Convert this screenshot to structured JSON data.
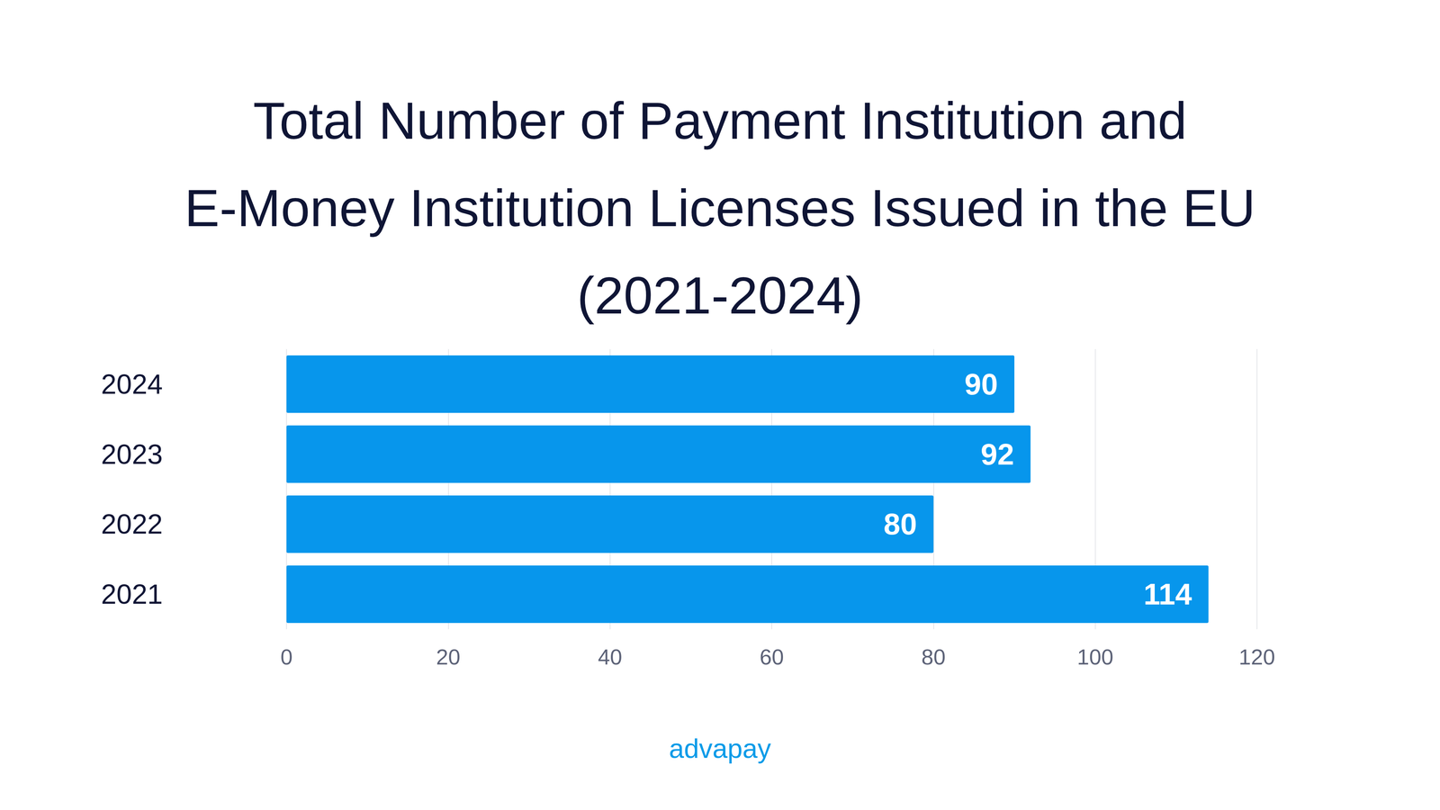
{
  "chart_data": {
    "type": "bar",
    "title": "Total Number of Payment Institution and\nE-Money Institution Licenses Issued in the EU\n(2021-2024)",
    "categories": [
      "2021",
      "2022",
      "2023",
      "2024"
    ],
    "values": [
      114,
      80,
      92,
      90
    ],
    "color": "#0796ec",
    "orientation": "horizontal",
    "xlim": [
      0,
      120
    ],
    "xticks": [
      0,
      20,
      40,
      60,
      80,
      100,
      120
    ],
    "grid": true,
    "data_labels": true,
    "annotations": [
      "advapay"
    ]
  }
}
